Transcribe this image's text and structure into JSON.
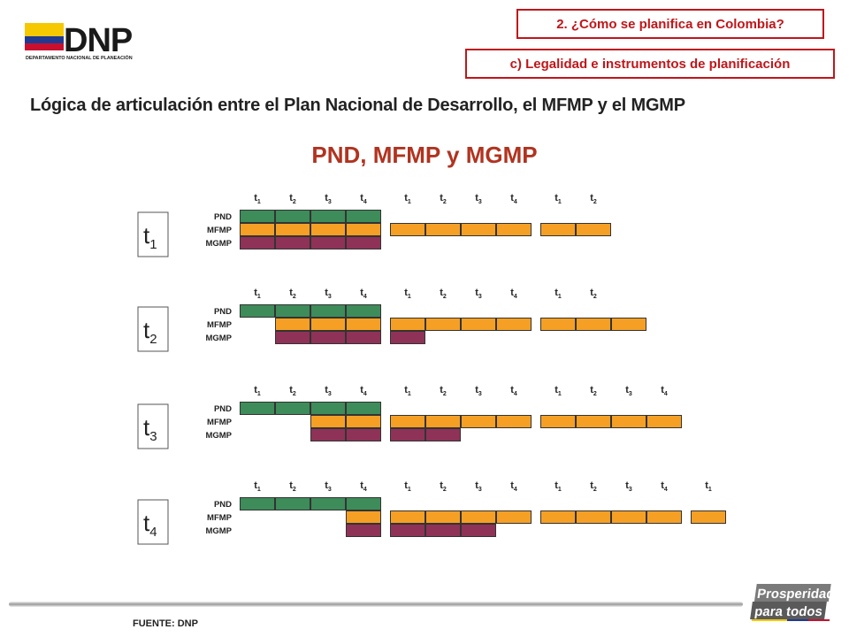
{
  "header": {
    "logo_text": "DNP",
    "logo_subtitle": "DEPARTAMENTO NACIONAL DE PLANEACIÓN",
    "section_tag": "2.  ¿Cómo se planifica en Colombia?",
    "subsection_tag": "c) Legalidad e instrumentos de planificación"
  },
  "heading": "Lógica de articulación entre el Plan Nacional de Desarrollo, el MFMP y el MGMP",
  "diagram_title": "PND, MFMP y MGMP",
  "row_labels": [
    "PND",
    "MFMP",
    "MGMP"
  ],
  "colors": {
    "PND": "#3d8c5a",
    "MFMP": "#f5a025",
    "MGMP": "#8f3258",
    "accent": "#c0161a",
    "title": "#b1331f"
  },
  "panels": [
    {
      "period": "t",
      "period_sub": "1",
      "columns": [
        {
          "t": "t",
          "s": "1"
        },
        {
          "t": "t",
          "s": "2"
        },
        {
          "t": "t",
          "s": "3"
        },
        {
          "t": "t",
          "s": "4"
        },
        {
          "t": "t",
          "s": "1"
        },
        {
          "t": "t",
          "s": "2"
        },
        {
          "t": "t",
          "s": "3"
        },
        {
          "t": "t",
          "s": "4"
        },
        {
          "t": "t",
          "s": "1"
        },
        {
          "t": "t",
          "s": "2"
        }
      ],
      "PND": [
        0,
        1,
        2,
        3
      ],
      "MFMP": [
        0,
        1,
        2,
        3,
        4,
        5,
        6,
        7,
        8,
        9
      ],
      "MGMP": [
        0,
        1,
        2,
        3
      ]
    },
    {
      "period": "t",
      "period_sub": "2",
      "columns": [
        {
          "t": "t",
          "s": "1"
        },
        {
          "t": "t",
          "s": "2"
        },
        {
          "t": "t",
          "s": "3"
        },
        {
          "t": "t",
          "s": "4"
        },
        {
          "t": "t",
          "s": "1"
        },
        {
          "t": "t",
          "s": "2"
        },
        {
          "t": "t",
          "s": "3"
        },
        {
          "t": "t",
          "s": "4"
        },
        {
          "t": "t",
          "s": "1"
        },
        {
          "t": "t",
          "s": "2"
        }
      ],
      "PND": [
        0,
        1,
        2,
        3
      ],
      "MFMP": [
        1,
        2,
        3,
        4,
        5,
        6,
        7,
        8,
        9,
        10
      ],
      "MGMP": [
        1,
        2,
        3,
        4
      ]
    },
    {
      "period": "t",
      "period_sub": "3",
      "columns": [
        {
          "t": "t",
          "s": "1"
        },
        {
          "t": "t",
          "s": "2"
        },
        {
          "t": "t",
          "s": "3"
        },
        {
          "t": "t",
          "s": "4"
        },
        {
          "t": "t",
          "s": "1"
        },
        {
          "t": "t",
          "s": "2"
        },
        {
          "t": "t",
          "s": "3"
        },
        {
          "t": "t",
          "s": "4"
        },
        {
          "t": "t",
          "s": "1"
        },
        {
          "t": "t",
          "s": "2"
        },
        {
          "t": "t",
          "s": "3"
        },
        {
          "t": "t",
          "s": "4"
        }
      ],
      "PND": [
        0,
        1,
        2,
        3
      ],
      "MFMP": [
        2,
        3,
        4,
        5,
        6,
        7,
        8,
        9,
        10,
        11
      ],
      "MGMP": [
        2,
        3,
        4,
        5
      ]
    },
    {
      "period": "t",
      "period_sub": "4",
      "columns": [
        {
          "t": "t",
          "s": "1"
        },
        {
          "t": "t",
          "s": "2"
        },
        {
          "t": "t",
          "s": "3"
        },
        {
          "t": "t",
          "s": "4"
        },
        {
          "t": "t",
          "s": "1"
        },
        {
          "t": "t",
          "s": "2"
        },
        {
          "t": "t",
          "s": "3"
        },
        {
          "t": "t",
          "s": "4"
        },
        {
          "t": "t",
          "s": "1"
        },
        {
          "t": "t",
          "s": "2"
        },
        {
          "t": "t",
          "s": "3"
        },
        {
          "t": "t",
          "s": "4"
        },
        {
          "t": "t",
          "s": "1"
        }
      ],
      "PND": [
        0,
        1,
        2,
        3
      ],
      "MFMP": [
        3,
        4,
        5,
        6,
        7,
        8,
        9,
        10,
        11,
        12
      ],
      "MGMP": [
        3,
        4,
        5,
        6
      ]
    }
  ],
  "source": "FUENTE: DNP",
  "footer_badge": {
    "line1": "Prosperidad",
    "line2": "para todos"
  }
}
